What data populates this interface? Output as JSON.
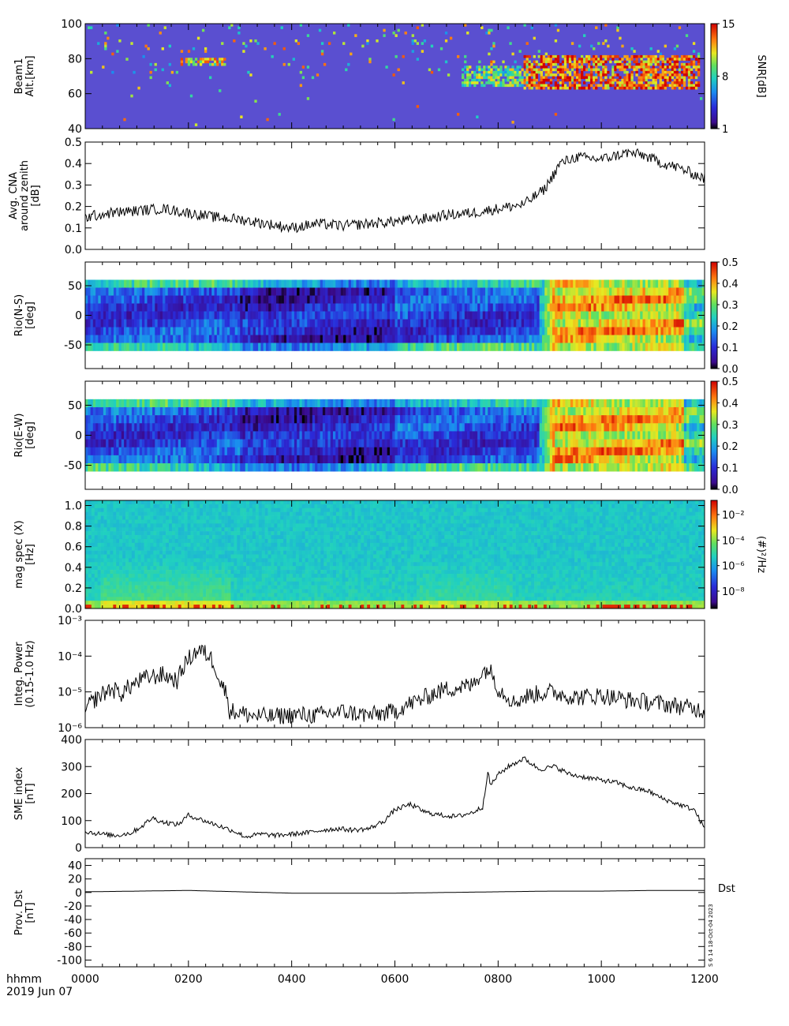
{
  "chart_data": [
    {
      "type": "heatmap",
      "ylabel": [
        "Beam1",
        "Alt.[km]"
      ],
      "ylim": [
        40,
        100
      ],
      "yticks": [
        "40",
        "60",
        "80",
        "100"
      ],
      "colorbar": {
        "label": "SNR[dB]",
        "ticks": [
          "1",
          "8",
          "15"
        ],
        "range": [
          1,
          15
        ]
      },
      "colors": {
        "background": "#5a4fd0"
      },
      "features": [
        {
          "t": [
            1.85,
            2.7
          ],
          "alt": [
            76,
            80
          ],
          "level": 11
        },
        {
          "t": [
            7.3,
            8.6
          ],
          "alt": [
            64,
            76
          ],
          "level": 9
        },
        {
          "t": [
            8.5,
            11.9
          ],
          "alt": [
            62,
            82
          ],
          "level": 13
        }
      ]
    },
    {
      "type": "line",
      "ylabel": [
        "Avg. CNA",
        "around zenith",
        "[dB]"
      ],
      "ylim": [
        0,
        0.5
      ],
      "yticks": [
        "0.0",
        "0.1",
        "0.2",
        "0.3",
        "0.4",
        "0.5"
      ],
      "series": [
        {
          "x": [
            0,
            0.5,
            1,
            1.5,
            2,
            2.5,
            3,
            3.5,
            4,
            4.5,
            5,
            5.5,
            6,
            6.5,
            7,
            7.5,
            8,
            8.5,
            8.9,
            9.2,
            9.5,
            10,
            10.5,
            10.8,
            11.2,
            11.5,
            11.7,
            12
          ],
          "y": [
            0.15,
            0.17,
            0.18,
            0.19,
            0.17,
            0.15,
            0.14,
            0.12,
            0.1,
            0.12,
            0.11,
            0.12,
            0.13,
            0.14,
            0.16,
            0.17,
            0.19,
            0.21,
            0.28,
            0.4,
            0.43,
            0.42,
            0.45,
            0.44,
            0.4,
            0.38,
            0.36,
            0.33
          ]
        }
      ]
    },
    {
      "type": "heatmap",
      "ylabel": [
        "Rio(N-S)",
        "[deg]"
      ],
      "ylim": [
        -90,
        90
      ],
      "yticks": [
        "-50",
        "0",
        "50"
      ],
      "colorbar": {
        "label": "",
        "ticks": [
          "0.0",
          "0.1",
          "0.2",
          "0.3",
          "0.4",
          "0.5"
        ],
        "range": [
          0,
          0.5
        ]
      },
      "rows": 9,
      "ext": [
        -60,
        60
      ]
    },
    {
      "type": "heatmap",
      "ylabel": [
        "Rio(E-W)",
        "[deg]"
      ],
      "ylim": [
        -90,
        90
      ],
      "yticks": [
        "-50",
        "0",
        "50"
      ],
      "colorbar": {
        "label": "",
        "ticks": [
          "0.0",
          "0.1",
          "0.2",
          "0.3",
          "0.4",
          "0.5"
        ],
        "range": [
          0,
          0.5
        ]
      },
      "rows": 9,
      "ext": [
        -60,
        60
      ]
    },
    {
      "type": "heatmap",
      "ylabel": [
        "mag spec (X)",
        "[Hz]"
      ],
      "ylim": [
        0,
        1.05
      ],
      "yticks": [
        "0.0",
        "0.2",
        "0.4",
        "0.6",
        "0.8",
        "1.0"
      ],
      "colorbar": {
        "label": "(#)²/Hz",
        "ticks": [
          "10⁻²",
          "10⁻⁴",
          "10⁻⁶",
          "10⁻⁸"
        ]
      }
    },
    {
      "type": "line",
      "ylabel": [
        "Integ. Power",
        "(0.15-1.0 Hz)"
      ],
      "yscale": "log",
      "ylim": [
        1e-06,
        0.001
      ],
      "yticks": [
        "10⁻³",
        "10⁻⁴",
        "10⁻⁵",
        "10⁻⁶"
      ],
      "series": [
        {
          "x": [
            0,
            0.3,
            0.5,
            0.7,
            0.9,
            1.2,
            1.5,
            1.8,
            2.0,
            2.2,
            2.4,
            2.6,
            2.8,
            3.2,
            3.6,
            4,
            4.5,
            5,
            5.5,
            6,
            6.5,
            7,
            7.5,
            7.8,
            8.0,
            8.3,
            8.6,
            9,
            9.5,
            10,
            10.5,
            11,
            11.5,
            12
          ],
          "y": [
            3e-06,
            8e-06,
            1.2e-05,
            9e-06,
            1.5e-05,
            2.5e-05,
            3e-05,
            2e-05,
            8e-05,
            0.00015,
            0.0001,
            2e-05,
            3e-06,
            2.2e-06,
            2e-06,
            2.3e-06,
            2.2e-06,
            2.8e-06,
            2.2e-06,
            2.8e-06,
            6e-06,
            1.2e-05,
            1.5e-05,
            4.5e-05,
            1.2e-05,
            5e-06,
            8e-06,
            1e-05,
            7e-06,
            8e-06,
            6e-06,
            5e-06,
            4e-06,
            3e-06
          ]
        }
      ]
    },
    {
      "type": "line",
      "ylabel": [
        "SME index",
        "[nT]"
      ],
      "ylim": [
        0,
        400
      ],
      "yticks": [
        "0",
        "100",
        "200",
        "300",
        "400"
      ],
      "series": [
        {
          "x": [
            0,
            0.3,
            0.6,
            0.9,
            1.1,
            1.3,
            1.5,
            1.8,
            2.0,
            2.3,
            2.6,
            2.9,
            3.1,
            3.4,
            3.7,
            4.0,
            4.3,
            4.6,
            4.9,
            5.2,
            5.5,
            5.8,
            6.0,
            6.3,
            6.6,
            6.9,
            7.2,
            7.5,
            7.7,
            7.8,
            7.85,
            8.0,
            8.2,
            8.5,
            8.8,
            9.1,
            9.4,
            9.7,
            10.0,
            10.3,
            10.6,
            10.9,
            11.2,
            11.5,
            11.8,
            12.0
          ],
          "y": [
            60,
            50,
            45,
            55,
            80,
            110,
            95,
            85,
            120,
            100,
            80,
            60,
            40,
            50,
            45,
            50,
            55,
            65,
            70,
            65,
            70,
            100,
            140,
            160,
            130,
            120,
            115,
            130,
            150,
            280,
            230,
            270,
            300,
            330,
            290,
            300,
            270,
            260,
            250,
            240,
            220,
            210,
            180,
            160,
            140,
            70
          ]
        }
      ]
    },
    {
      "type": "line",
      "ylabel": [
        "Prov. Dst",
        "[nT]"
      ],
      "ylim": [
        -110,
        50
      ],
      "yticks": [
        "40",
        "20",
        "0",
        "-20",
        "-40",
        "-60",
        "-80",
        "-100"
      ],
      "legend": "Dst",
      "series": [
        {
          "name": "Dst",
          "x": [
            0,
            1,
            2,
            3,
            4,
            5,
            6,
            7,
            8,
            9,
            10,
            11,
            12
          ],
          "y": [
            1,
            2,
            3,
            1,
            -1,
            -1,
            -1,
            0,
            1,
            2,
            2,
            3,
            3
          ]
        }
      ]
    }
  ],
  "x_axis": {
    "ticks": [
      "0000",
      "0200",
      "0400",
      "0600",
      "0800",
      "1000",
      "1200"
    ],
    "values": [
      0,
      2,
      4,
      6,
      8,
      10,
      12
    ],
    "label_line1": "hhmm",
    "label_line2": "2019 Jun 07"
  },
  "side_stamp": "S 6 14 18-Oct-04 2023"
}
